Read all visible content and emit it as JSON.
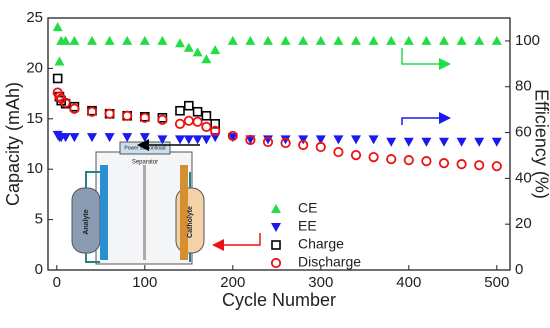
{
  "chart_data": {
    "type": "scatter",
    "x_label": "Cycle Number",
    "y_label": "Capacity (mAh)",
    "y2_label": "Efficiency (%)",
    "x": [
      1,
      3,
      5,
      10,
      20,
      40,
      60,
      80,
      100,
      120,
      140,
      150,
      160,
      170,
      180,
      200,
      220,
      240,
      260,
      280,
      300,
      320,
      340,
      360,
      380,
      400,
      420,
      440,
      460,
      480,
      500
    ],
    "series": [
      {
        "name": "CE",
        "color": "#22dd44",
        "marker": "triangle-up",
        "axis": "y2",
        "values": [
          106,
          91,
          100,
          100,
          100,
          100,
          100,
          100,
          100,
          100,
          99,
          97,
          95,
          92,
          96,
          100,
          100,
          100,
          100,
          100,
          100,
          100,
          100,
          100,
          100,
          100,
          100,
          100,
          100,
          100,
          100
        ]
      },
      {
        "name": "EE",
        "color": "#1a1aee",
        "marker": "triangle-down",
        "axis": "y2",
        "values": [
          59,
          58,
          58,
          58,
          58,
          58,
          58,
          58,
          58,
          57,
          57,
          57,
          57,
          57,
          58,
          58,
          57,
          57,
          57,
          57,
          57,
          57,
          57,
          57,
          56,
          56,
          56,
          56,
          56,
          56,
          56
        ]
      },
      {
        "name": "Charge",
        "color": "#000000",
        "marker": "square-open",
        "axis": "y",
        "values": [
          19,
          17.2,
          16.8,
          16.5,
          16.2,
          15.8,
          15.5,
          15.3,
          15.2,
          15.1,
          15.8,
          16.3,
          15.7,
          15.3,
          14.5,
          null,
          null,
          null,
          null,
          null,
          null,
          null,
          null,
          null,
          null,
          null,
          null,
          null,
          null,
          null,
          null
        ]
      },
      {
        "name": "Discharge",
        "color": "#ee1111",
        "marker": "circle-open",
        "axis": "y",
        "values": [
          17.6,
          17.2,
          17,
          16.6,
          16,
          15.7,
          15.5,
          15.3,
          15.1,
          14.9,
          14.5,
          14.8,
          14.7,
          14.2,
          13.8,
          13.3,
          12.9,
          12.7,
          12.6,
          12.4,
          12.2,
          11.7,
          11.4,
          11.2,
          11,
          10.9,
          10.8,
          10.6,
          10.5,
          10.4,
          10.3
        ]
      }
    ],
    "xlim": [
      -10,
      515
    ],
    "xticks": [
      0,
      100,
      200,
      300,
      400,
      500
    ],
    "ylim": [
      0,
      25
    ],
    "yticks": [
      0,
      5,
      10,
      15,
      20,
      25
    ],
    "y2lim": [
      0,
      110
    ],
    "y2ticks": [
      0,
      20,
      40,
      60,
      80,
      100
    ],
    "legend": "lower-right",
    "inset_labels": [
      "Analyte",
      "Catholyte",
      "Separator",
      "Power station/load"
    ]
  }
}
